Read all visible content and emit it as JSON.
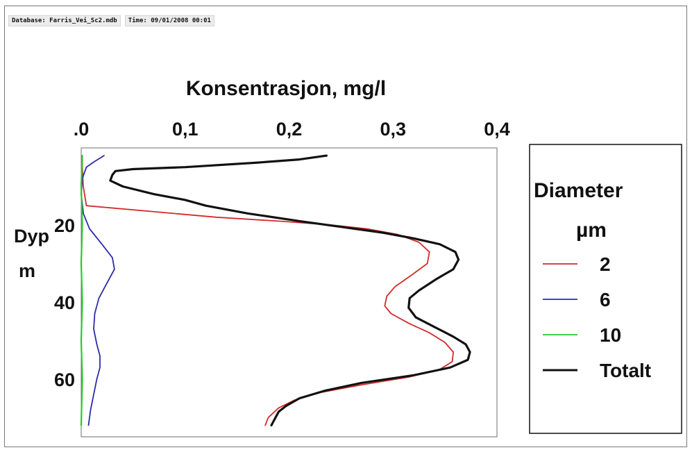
{
  "status": {
    "database": "Database: Farris_Vei_Sc2.mdb",
    "time": "Time: 09/01/2008 00:01"
  },
  "chart_data": {
    "type": "line",
    "xlabel": "Konsentrasjon, mg/l",
    "ylabel": [
      "Dyp",
      "m"
    ],
    "x_axis_position": "top",
    "y_axis_inverted": true,
    "xlim": [
      0,
      0.4
    ],
    "ylim": [
      0,
      75
    ],
    "x_ticks": [
      ".0",
      "0,1",
      "0,2",
      "0,3",
      "0,4"
    ],
    "x_tick_values": [
      0,
      0.1,
      0.2,
      0.3,
      0.4
    ],
    "y_ticks": [
      "20",
      "40",
      "60"
    ],
    "y_tick_values": [
      20,
      40,
      60
    ],
    "grid": false,
    "legend": {
      "title": [
        "Diameter",
        "µm"
      ],
      "placement": "right",
      "entries": [
        "2",
        "6",
        "10",
        "Totalt"
      ]
    },
    "series": [
      {
        "name": "2",
        "color": "#d42a2a",
        "points": [
          [
            0.001,
            2
          ],
          [
            0.001,
            5
          ],
          [
            0.002,
            10
          ],
          [
            0.005,
            15
          ],
          [
            0.13,
            18
          ],
          [
            0.19,
            19
          ],
          [
            0.24,
            20
          ],
          [
            0.275,
            21
          ],
          [
            0.305,
            22.5
          ],
          [
            0.325,
            24.5
          ],
          [
            0.335,
            27
          ],
          [
            0.333,
            30
          ],
          [
            0.318,
            33
          ],
          [
            0.302,
            36
          ],
          [
            0.294,
            38.5
          ],
          [
            0.292,
            41
          ],
          [
            0.298,
            43
          ],
          [
            0.315,
            45.5
          ],
          [
            0.335,
            48
          ],
          [
            0.35,
            50.5
          ],
          [
            0.358,
            53
          ],
          [
            0.357,
            55.5
          ],
          [
            0.345,
            57.5
          ],
          [
            0.315,
            59.5
          ],
          [
            0.27,
            61.5
          ],
          [
            0.23,
            63.5
          ],
          [
            0.205,
            65.5
          ],
          [
            0.19,
            67.5
          ],
          [
            0.18,
            70
          ],
          [
            0.177,
            72
          ]
        ]
      },
      {
        "name": "6",
        "color": "#2b2ba8",
        "points": [
          [
            0.022,
            2
          ],
          [
            0.013,
            3.5
          ],
          [
            0.005,
            5
          ],
          [
            0.001,
            8
          ],
          [
            0.0,
            12
          ],
          [
            0.002,
            17
          ],
          [
            0.008,
            21
          ],
          [
            0.02,
            25
          ],
          [
            0.03,
            28.5
          ],
          [
            0.032,
            31.5
          ],
          [
            0.025,
            35
          ],
          [
            0.017,
            39
          ],
          [
            0.013,
            43
          ],
          [
            0.012,
            47
          ],
          [
            0.015,
            51
          ],
          [
            0.018,
            54
          ],
          [
            0.018,
            57
          ],
          [
            0.015,
            60
          ],
          [
            0.012,
            64
          ],
          [
            0.009,
            68
          ],
          [
            0.007,
            72
          ]
        ]
      },
      {
        "name": "10",
        "color": "#22cc22",
        "points": [
          [
            0.001,
            2
          ],
          [
            0.0,
            10
          ],
          [
            0.001,
            20
          ],
          [
            0.0,
            30
          ],
          [
            0.001,
            40
          ],
          [
            0.0,
            50
          ],
          [
            0.001,
            60
          ],
          [
            0.0,
            72
          ]
        ]
      },
      {
        "name": "Totalt",
        "color": "#111111",
        "points": [
          [
            0.236,
            2
          ],
          [
            0.21,
            3
          ],
          [
            0.17,
            3.8
          ],
          [
            0.1,
            5
          ],
          [
            0.05,
            5.5
          ],
          [
            0.033,
            6
          ],
          [
            0.03,
            7
          ],
          [
            0.028,
            8.5
          ],
          [
            0.04,
            10
          ],
          [
            0.07,
            12
          ],
          [
            0.1,
            13.5
          ],
          [
            0.12,
            15
          ],
          [
            0.16,
            17
          ],
          [
            0.21,
            19
          ],
          [
            0.25,
            20.5
          ],
          [
            0.29,
            22
          ],
          [
            0.32,
            23.5
          ],
          [
            0.345,
            25
          ],
          [
            0.36,
            27
          ],
          [
            0.363,
            29
          ],
          [
            0.358,
            31.5
          ],
          [
            0.342,
            34
          ],
          [
            0.325,
            37
          ],
          [
            0.316,
            39
          ],
          [
            0.315,
            41.5
          ],
          [
            0.322,
            44
          ],
          [
            0.34,
            46.5
          ],
          [
            0.358,
            49
          ],
          [
            0.37,
            51
          ],
          [
            0.374,
            53
          ],
          [
            0.372,
            55
          ],
          [
            0.355,
            57
          ],
          [
            0.32,
            59
          ],
          [
            0.27,
            61
          ],
          [
            0.235,
            63
          ],
          [
            0.21,
            65
          ],
          [
            0.197,
            67
          ],
          [
            0.19,
            68.5
          ],
          [
            0.186,
            70.5
          ],
          [
            0.183,
            72
          ]
        ]
      }
    ]
  }
}
